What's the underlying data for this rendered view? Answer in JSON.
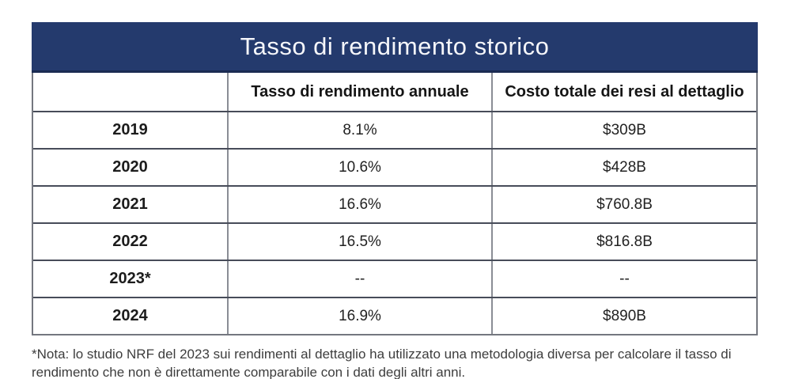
{
  "title": "Tasso di rendimento storico",
  "table": {
    "columns": {
      "year": "",
      "rate": "Tasso di rendimento annuale",
      "cost": "Costo totale dei resi al dettaglio"
    },
    "rows": [
      {
        "year": "2019",
        "rate": "8.1%",
        "cost": "$309B"
      },
      {
        "year": "2020",
        "rate": "10.6%",
        "cost": "$428B"
      },
      {
        "year": "2021",
        "rate": "16.6%",
        "cost": "$760.8B"
      },
      {
        "year": "2022",
        "rate": "16.5%",
        "cost": "$816.8B"
      },
      {
        "year": "2023*",
        "rate": "--",
        "cost": "--"
      },
      {
        "year": "2024",
        "rate": "16.9%",
        "cost": "$890B"
      }
    ]
  },
  "footnote": "*Nota: lo studio NRF del 2023 sui rendimenti al dettaglio ha utilizzato una metodologia diversa per calcolare il tasso di rendimento che non è direttamente comparabile con i dati degli altri anni.",
  "colors": {
    "navy": "#243a6d",
    "navy-edge": "#1b2b52",
    "border-dark": "#474c59",
    "border-light": "#8a8d95",
    "text-dark": "#1e1e1e",
    "footnote": "#3d3d3d"
  },
  "chart_data": {
    "type": "table",
    "title": "Tasso di rendimento storico",
    "columns": [
      "",
      "Tasso di rendimento annuale",
      "Costo totale dei resi al dettaglio"
    ],
    "rows": [
      [
        "2019",
        "8.1%",
        "$309B"
      ],
      [
        "2020",
        "10.6%",
        "$428B"
      ],
      [
        "2021",
        "16.6%",
        "$760.8B"
      ],
      [
        "2022",
        "16.5%",
        "$816.8B"
      ],
      [
        "2023*",
        "--",
        "--"
      ],
      [
        "2024",
        "16.9%",
        "$890B"
      ]
    ],
    "numeric": {
      "years": [
        2019,
        2020,
        2021,
        2022,
        2023,
        2024
      ],
      "annual_return_rate_pct": [
        8.1,
        10.6,
        16.6,
        16.5,
        null,
        16.9
      ],
      "total_retail_returns_cost_billion_usd": [
        309,
        428,
        760.8,
        816.8,
        null,
        890
      ]
    },
    "footnote": "*Nota: lo studio NRF del 2023 sui rendimenti al dettaglio ha utilizzato una metodologia diversa per calcolare il tasso di rendimento che non è direttamente comparabile con i dati degli altri anni."
  }
}
